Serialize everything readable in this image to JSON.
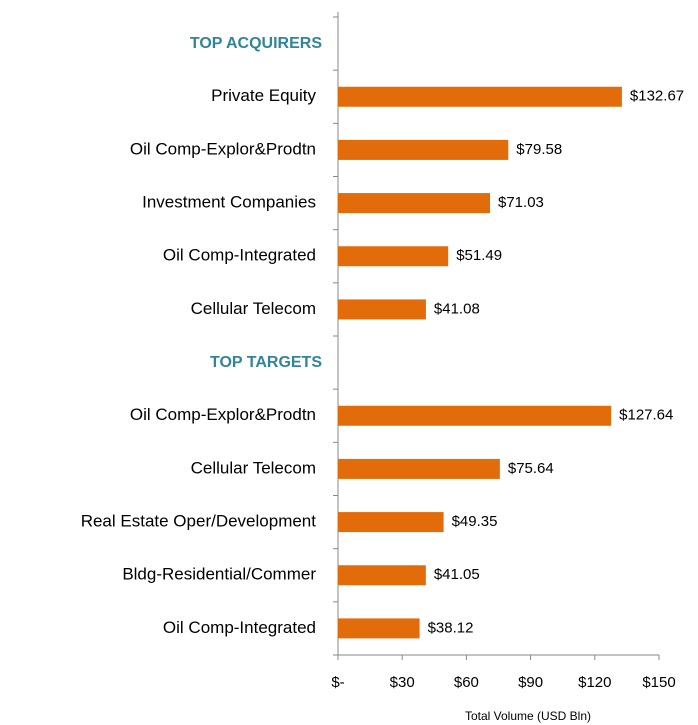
{
  "chart_data": {
    "type": "bar",
    "orientation": "horizontal",
    "groups": [
      {
        "name": "TOP ACQUIRERS",
        "categories": [
          "Private Equity",
          "Oil Comp-Explor&Prodtn",
          "Investment Companies",
          "Oil Comp-Integrated",
          "Cellular Telecom"
        ],
        "values": [
          132.67,
          79.58,
          71.03,
          51.49,
          41.08
        ],
        "value_labels": [
          "$132.67",
          "$79.58",
          "$71.03",
          "$51.49",
          "$41.08"
        ]
      },
      {
        "name": "TOP TARGETS",
        "categories": [
          "Oil Comp-Explor&Prodtn",
          "Cellular Telecom",
          "Real Estate Oper/Development",
          "Bldg-Residential/Commer",
          "Oil Comp-Integrated"
        ],
        "values": [
          127.64,
          75.64,
          49.35,
          41.05,
          38.12
        ],
        "value_labels": [
          "$127.64",
          "$75.64",
          "$49.35",
          "$41.05",
          "$38.12"
        ]
      }
    ],
    "color": "#e36c0a",
    "header_color": "#31849b",
    "xlabel": "Total Volume (USD Bln)",
    "xlim": [
      0,
      150
    ],
    "xticks": [
      {
        "value": 0,
        "label": "$-"
      },
      {
        "value": 30,
        "label": "$30"
      },
      {
        "value": 60,
        "label": "$60"
      },
      {
        "value": 90,
        "label": "$90"
      },
      {
        "value": 120,
        "label": "$120"
      },
      {
        "value": 150,
        "label": "$150"
      }
    ]
  }
}
